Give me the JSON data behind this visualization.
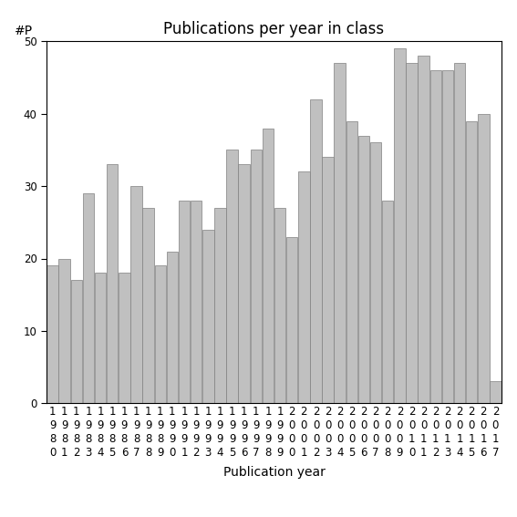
{
  "title": "Publications per year in class",
  "xlabel": "Publication year",
  "ylabel": "#P",
  "years": [
    1980,
    1981,
    1982,
    1983,
    1984,
    1985,
    1986,
    1987,
    1988,
    1989,
    1990,
    1991,
    1992,
    1993,
    1994,
    1995,
    1996,
    1997,
    1998,
    1999,
    2000,
    2001,
    2002,
    2003,
    2004,
    2005,
    2006,
    2007,
    2008,
    2009,
    2010,
    2011,
    2012,
    2013,
    2014,
    2015,
    2016,
    2017
  ],
  "values": [
    19,
    20,
    17,
    29,
    18,
    33,
    18,
    30,
    27,
    19,
    21,
    28,
    28,
    24,
    27,
    35,
    33,
    35,
    38,
    27,
    23,
    32,
    42,
    34,
    47,
    39,
    37,
    36,
    28,
    49,
    47,
    48,
    46,
    46,
    47,
    39,
    40,
    3
  ],
  "bar_color": "#c0c0c0",
  "bar_edge_color": "#808080",
  "ylim": [
    0,
    50
  ],
  "yticks": [
    0,
    10,
    20,
    30,
    40,
    50
  ],
  "background_color": "#ffffff",
  "title_fontsize": 12,
  "axis_label_fontsize": 10,
  "tick_fontsize": 8.5
}
